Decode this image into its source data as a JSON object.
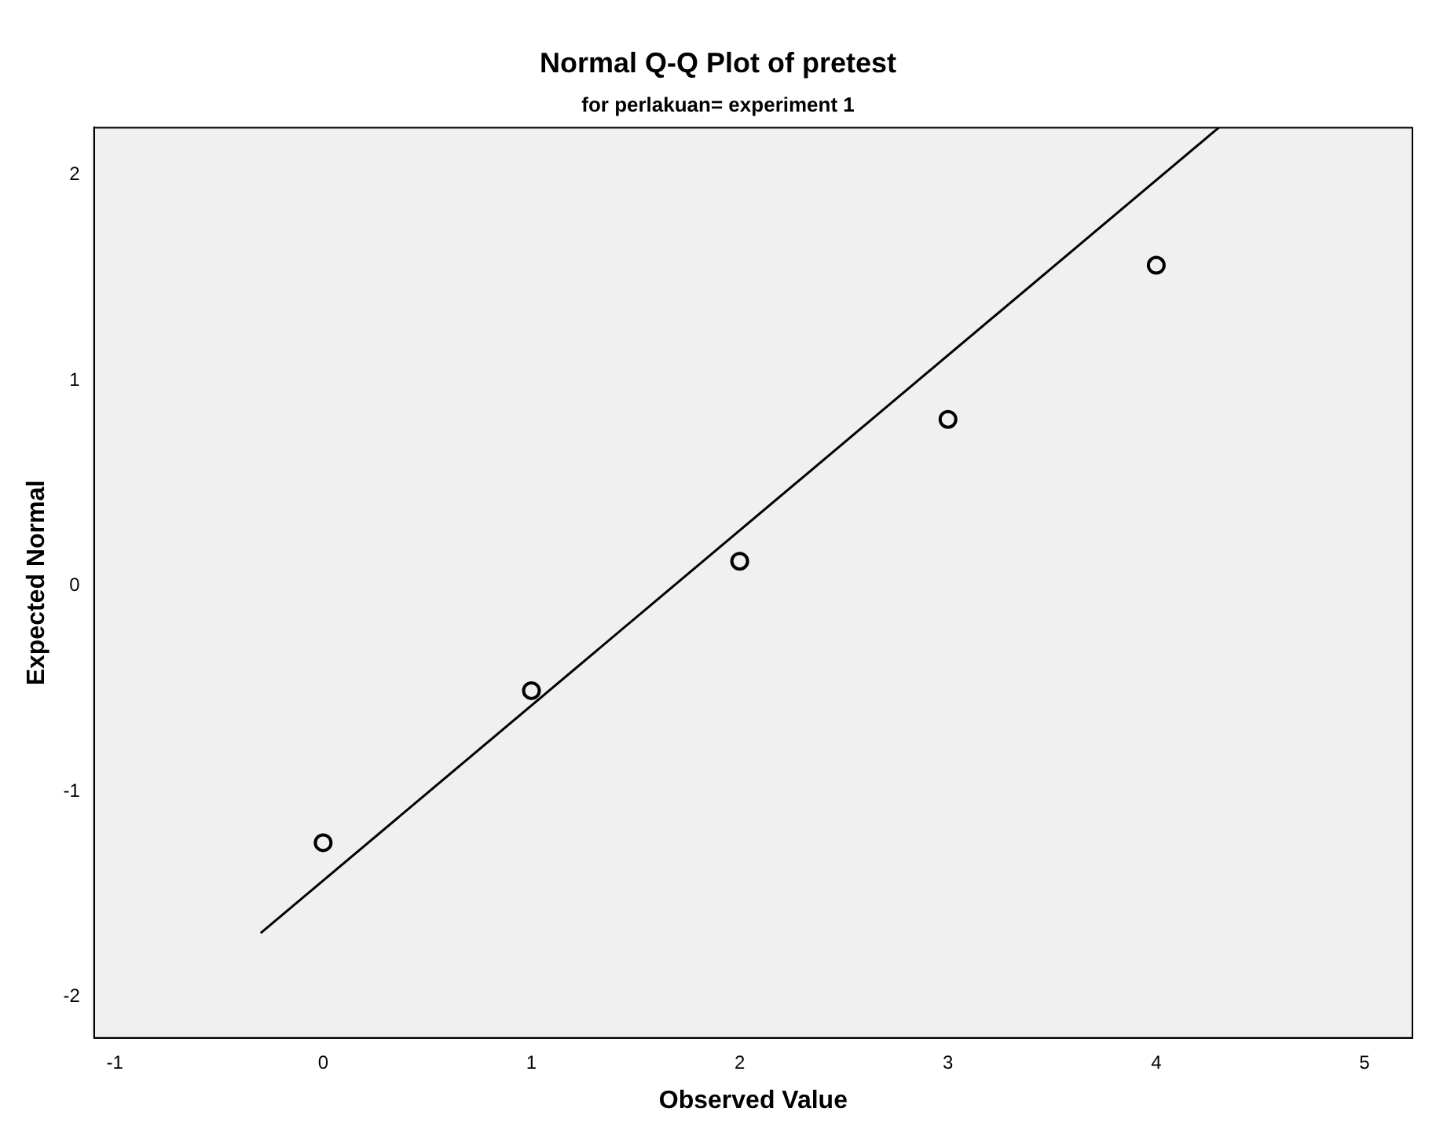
{
  "chart_data": {
    "type": "scatter",
    "title": "Normal Q-Q Plot of pretest",
    "subtitle": "for perlakuan= experiment 1",
    "xlabel": "Observed Value",
    "ylabel": "Expected Normal",
    "xlim": [
      -1.1,
      5.23
    ],
    "ylim": [
      -2.2,
      2.23
    ],
    "xticks": [
      -1,
      0,
      1,
      2,
      3,
      4,
      5
    ],
    "yticks": [
      -2,
      -1,
      0,
      1,
      2
    ],
    "grid": false,
    "legend": false,
    "marker": "circle",
    "series": [
      {
        "type": "scatter",
        "color": "#000000",
        "x": [
          0,
          1,
          2,
          3,
          4
        ],
        "values": [
          -1.25,
          -0.51,
          0.12,
          0.81,
          1.56
        ]
      },
      {
        "type": "line",
        "color": "#000000",
        "x": [
          -0.3,
          4.3
        ],
        "values": [
          -1.69,
          2.23
        ],
        "line_style": "solid",
        "marker": "none"
      }
    ]
  }
}
